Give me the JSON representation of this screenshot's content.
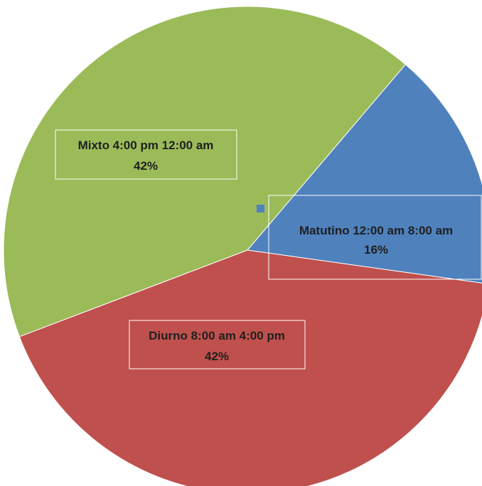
{
  "chart_data": {
    "type": "pie",
    "title": "",
    "slices": [
      {
        "name": "Matutino 12:00 am 8:00 am",
        "value": 16,
        "percent_label": "16%",
        "color": "#4F81BD"
      },
      {
        "name": "Diurno 8:00 am 4:00 pm",
        "value": 42,
        "percent_label": "42%",
        "color": "#C0504D"
      },
      {
        "name": "Mixto 4:00 pm 12:00 am",
        "value": 42,
        "percent_label": "42%",
        "color": "#9BBB59"
      }
    ],
    "legend": "none",
    "data_labels": "category name and percentage"
  }
}
